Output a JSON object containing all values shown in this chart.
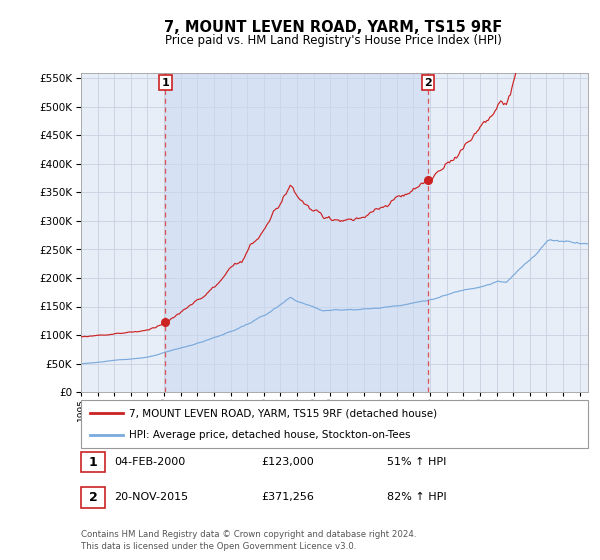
{
  "title": "7, MOUNT LEVEN ROAD, YARM, TS15 9RF",
  "subtitle": "Price paid vs. HM Land Registry's House Price Index (HPI)",
  "legend_line1": "7, MOUNT LEVEN ROAD, YARM, TS15 9RF (detached house)",
  "legend_line2": "HPI: Average price, detached house, Stockton-on-Tees",
  "annotation1_date": "04-FEB-2000",
  "annotation1_price": "£123,000",
  "annotation1_hpi": "51% ↑ HPI",
  "annotation2_date": "20-NOV-2015",
  "annotation2_price": "£371,256",
  "annotation2_hpi": "82% ↑ HPI",
  "footer": "Contains HM Land Registry data © Crown copyright and database right 2024.\nThis data is licensed under the Open Government Licence v3.0.",
  "hpi_color": "#7aaadd",
  "price_color": "#cc2222",
  "marker_color": "#cc2222",
  "vline_color": "#dd4444",
  "plot_bg": "#e8eef8",
  "grid_color": "#c8d0e0",
  "ylim": [
    0,
    560000
  ],
  "ytick_vals": [
    0,
    50000,
    100000,
    150000,
    200000,
    250000,
    300000,
    350000,
    400000,
    450000,
    500000,
    550000
  ],
  "sale1_x": 2000.083,
  "sale1_y": 123000,
  "sale2_x": 2015.875,
  "sale2_y": 371256,
  "xmin": 1995.0,
  "xmax": 2025.5
}
